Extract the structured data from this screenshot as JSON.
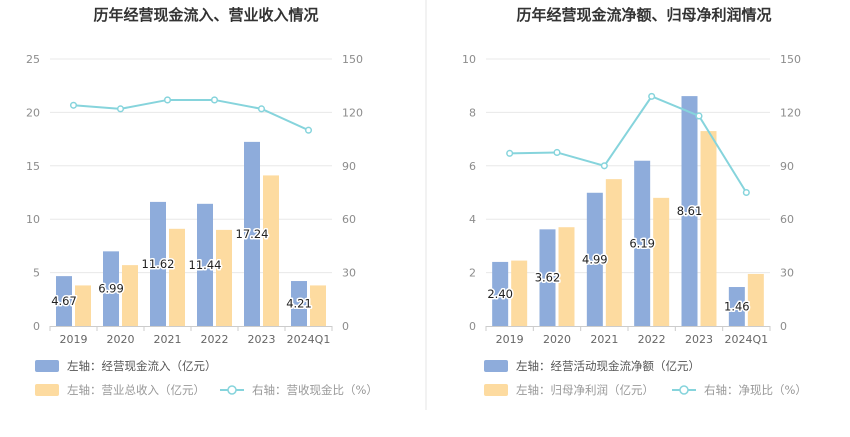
{
  "colors": {
    "bar_primary": "#8eacdb",
    "bar_secondary": "#fddba0",
    "line": "#86d4dc",
    "grid": "#e8e8e8",
    "divider": "#e6e6e6"
  },
  "chart_data": [
    {
      "type": "bar",
      "title": "历年经营现金流入、营业收入情况",
      "categories": [
        "2019",
        "2020",
        "2021",
        "2022",
        "2023",
        "2024Q1"
      ],
      "left_axis": {
        "ticks": [
          "0",
          "5",
          "10",
          "15",
          "20",
          "25"
        ],
        "ylim": [
          0,
          25
        ]
      },
      "right_axis": {
        "ticks": [
          "0",
          "30",
          "60",
          "90",
          "120",
          "150"
        ],
        "ylim": [
          0,
          150
        ]
      },
      "series": [
        {
          "name": "左轴：经营现金流入（亿元）",
          "axis": "left",
          "kind": "bar",
          "color": "#8eacdb",
          "values": [
            4.67,
            6.99,
            11.62,
            11.44,
            17.24,
            4.21
          ],
          "labels": [
            "4.67",
            "6.99",
            "11.62",
            "11.44",
            "17.24",
            "4.21"
          ]
        },
        {
          "name": "左轴：营业总收入（亿元）",
          "axis": "left",
          "kind": "bar",
          "color": "#fddba0",
          "values": [
            3.8,
            5.7,
            9.1,
            9.0,
            14.1,
            3.8
          ]
        },
        {
          "name": "右轴：营收现金比（%）",
          "axis": "right",
          "kind": "line",
          "color": "#86d4dc",
          "values": [
            124,
            122,
            127,
            127,
            122,
            110
          ]
        }
      ],
      "grid": true,
      "legend_position": "bottom-left"
    },
    {
      "type": "bar",
      "title": "历年经营现金流净额、归母净利润情况",
      "categories": [
        "2019",
        "2020",
        "2021",
        "2022",
        "2023",
        "2024Q1"
      ],
      "left_axis": {
        "ticks": [
          "0",
          "2",
          "4",
          "6",
          "8",
          "10"
        ],
        "ylim": [
          0,
          10
        ]
      },
      "right_axis": {
        "ticks": [
          "0",
          "30",
          "60",
          "90",
          "120",
          "150"
        ],
        "ylim": [
          0,
          150
        ]
      },
      "series": [
        {
          "name": "左轴：经营活动现金流净额（亿元）",
          "axis": "left",
          "kind": "bar",
          "color": "#8eacdb",
          "values": [
            2.4,
            3.62,
            4.99,
            6.19,
            8.61,
            1.46
          ],
          "labels": [
            "2.40",
            "3.62",
            "4.99",
            "6.19",
            "8.61",
            "1.46"
          ]
        },
        {
          "name": "左轴：归母净利润（亿元）",
          "axis": "left",
          "kind": "bar",
          "color": "#fddba0",
          "values": [
            2.45,
            3.7,
            5.5,
            4.8,
            7.3,
            1.95
          ]
        },
        {
          "name": "右轴：净现比（%）",
          "axis": "right",
          "kind": "line",
          "color": "#86d4dc",
          "values": [
            97,
            97.5,
            90,
            129,
            118,
            75
          ]
        }
      ],
      "grid": true,
      "legend_position": "bottom-left"
    }
  ]
}
